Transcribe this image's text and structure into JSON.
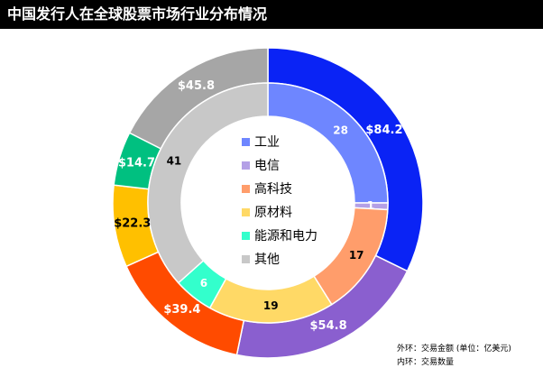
{
  "title": "中国发行人在全球股票市场行业分布情况",
  "footnotes": {
    "outer": "外环：交易金额 (单位：亿美元)",
    "inner": "内环：交易数量"
  },
  "chart_data": {
    "type": "donut",
    "title": "中国发行人在全球股票市场行业分布情况",
    "categories": [
      "工业",
      "电信",
      "高科技",
      "原材料",
      "能源和电力",
      "其他"
    ],
    "colors": {
      "outer": [
        "#0a23f5",
        "#8a5fcf",
        "#ff4b00",
        "#ffc000",
        "#00c080",
        "#a6a6a6"
      ],
      "inner": [
        "#6e86ff",
        "#b4a0e6",
        "#ff9d6b",
        "#ffd966",
        "#33ffcc",
        "#c8c8c8"
      ]
    },
    "series": [
      {
        "name": "外环：交易金额 (单位：亿美元)",
        "ring": "outer",
        "order": [
          "工业",
          "电信",
          "高科技",
          "原材料",
          "能源和电力",
          "其他"
        ],
        "values": [
          84.2,
          54.8,
          39.4,
          22.3,
          14.7,
          45.8
        ],
        "labels": [
          "$84.2",
          "$54.8",
          "$39.4",
          "$22.3",
          "$14.7",
          "$45.8"
        ]
      },
      {
        "name": "内环：交易数量",
        "ring": "inner",
        "order": [
          "工业",
          "电信",
          "高科技",
          "原材料",
          "能源和电力",
          "其他"
        ],
        "values": [
          28,
          1,
          17,
          19,
          6,
          41
        ],
        "labels": [
          "28",
          "1",
          "17",
          "19",
          "6",
          "41"
        ]
      }
    ],
    "legend": {
      "position": "center",
      "items": [
        "工业",
        "电信",
        "高科技",
        "原材料",
        "能源和电力",
        "其他"
      ]
    }
  }
}
